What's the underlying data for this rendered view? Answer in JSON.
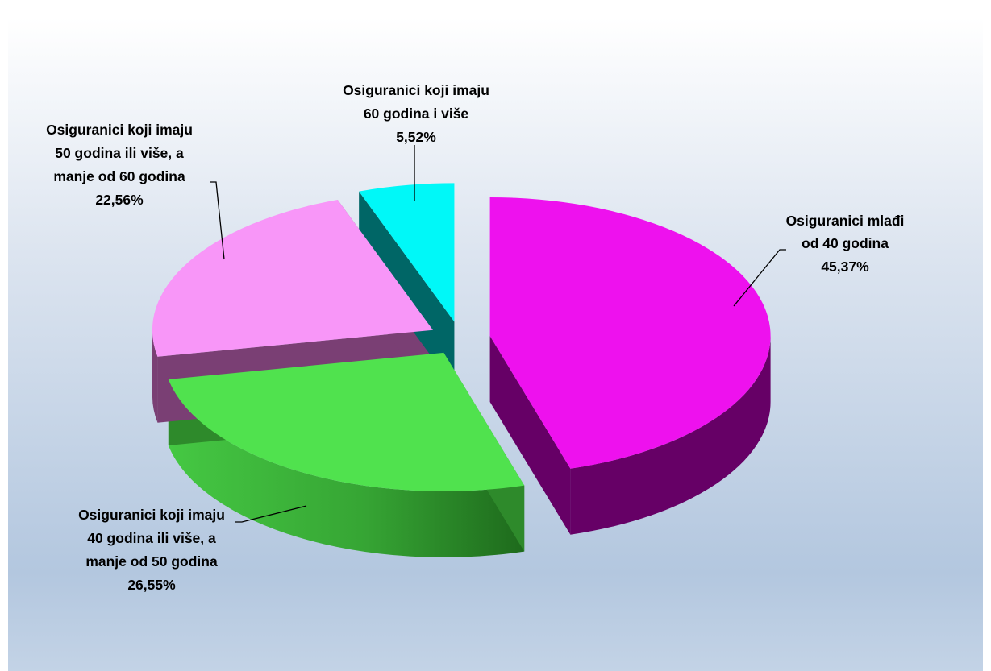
{
  "title": "",
  "chart_data": {
    "type": "pie",
    "title": "",
    "style": "3d-exploded",
    "legend": "none",
    "slices": [
      {
        "label": "Osiguranici mlađi od 40 godina",
        "label_lines": [
          "Osiguranici mlađi",
          "od 40 godina"
        ],
        "value": 45.37,
        "value_text": "45,37%",
        "color": "#ee11ee",
        "side_color": "#660066"
      },
      {
        "label": "Osiguranici koji imaju 40 godina ili više, a manje od 50 godina",
        "label_lines": [
          "Osiguranici koji imaju",
          "40 godina ili više, a",
          "manje od 50 godina"
        ],
        "value": 26.55,
        "value_text": "26,55%",
        "color": "#50e24e",
        "side_color": "#2e8a2b"
      },
      {
        "label": "Osiguranici koji imaju 50 godina ili više, a manje od 60 godina",
        "label_lines": [
          "Osiguranici koji imaju",
          "50 godina ili više, a",
          "manje od 60 godina"
        ],
        "value": 22.56,
        "value_text": "22,56%",
        "color": "#f896f8",
        "side_color": "#7a3f74"
      },
      {
        "label": "Osiguranici koji imaju 60 godina i više",
        "label_lines": [
          "Osiguranici koji imaju",
          "60 godina i više"
        ],
        "value": 5.52,
        "value_text": "5,52%",
        "color": "#00f8f8",
        "side_color": "#006666"
      }
    ]
  }
}
